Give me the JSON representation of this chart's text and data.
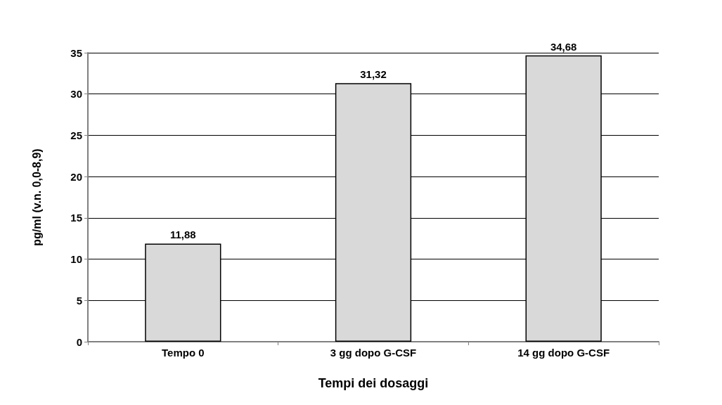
{
  "chart_data": {
    "type": "bar",
    "xlabel": "Tempi dei dosaggi",
    "ylabel": "pg/ml (v.n. 0,0-8,9)",
    "categories": [
      "Tempo 0",
      "3 gg dopo G-CSF",
      "14 gg dopo G-CSF"
    ],
    "values": [
      11.88,
      31.32,
      34.68
    ],
    "value_labels": [
      "11,88",
      "31,32",
      "34,68"
    ],
    "color": "#d9d9d9",
    "ylim": [
      0,
      35
    ],
    "yticks": [
      0,
      5,
      10,
      15,
      20,
      25,
      30,
      35
    ],
    "grid": "y"
  }
}
